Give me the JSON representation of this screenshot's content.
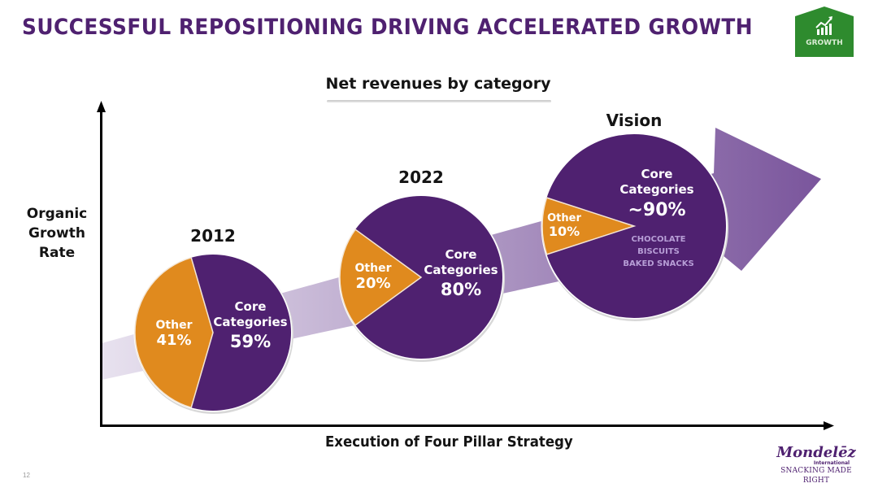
{
  "slide": {
    "title": "SUCCESSFUL REPOSITIONING DRIVING ACCELERATED GROWTH",
    "badge": {
      "icon": "growth-chart-icon",
      "label": "GROWTH",
      "color": "#2e8b2e"
    },
    "page_number": "12",
    "logo": {
      "name": "Mondelēz",
      "sub": "International",
      "tagline": "SNACKING MADE RIGHT"
    }
  },
  "colors": {
    "core": "#4f2170",
    "other": "#e08a1e",
    "arrow_start": "#e8e2ef",
    "arrow_end": "#7a559c",
    "title": "#4f2170"
  },
  "chart_data": {
    "type": "pie",
    "title": "Net revenues by category",
    "xlabel": "Execution of Four Pillar Strategy",
    "ylabel": "Organic Growth Rate",
    "ylabel_lines": [
      "Organic",
      "Growth",
      "Rate"
    ],
    "pies": [
      {
        "label": "2012",
        "slices": [
          {
            "name": "Other",
            "value": 41,
            "display": "41%"
          },
          {
            "name": "Core Categories",
            "value": 59,
            "display": "59%"
          }
        ]
      },
      {
        "label": "2022",
        "slices": [
          {
            "name": "Other",
            "value": 20,
            "display": "20%"
          },
          {
            "name": "Core Categories",
            "value": 80,
            "display": "80%"
          }
        ]
      },
      {
        "label": "Vision",
        "slices": [
          {
            "name": "Other",
            "value": 10,
            "display": "10%"
          },
          {
            "name": "Core Categories",
            "value": 90,
            "display": "~90%"
          }
        ],
        "core_detail": [
          "CHOCOLATE",
          "BISCUITS",
          "BAKED SNACKS"
        ]
      }
    ],
    "core_label_lines": [
      "Core",
      "Categories"
    ]
  }
}
